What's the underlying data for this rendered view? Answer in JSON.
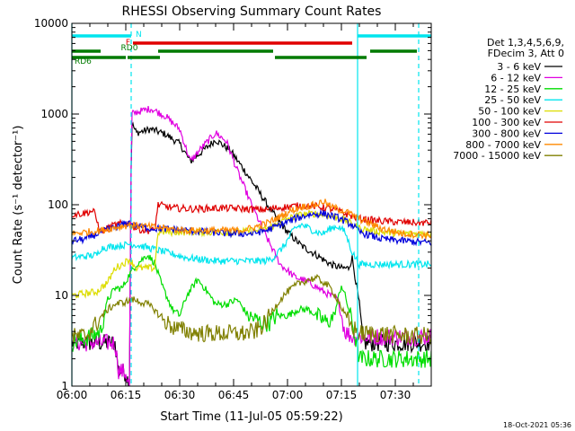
{
  "chart_data": {
    "type": "line",
    "title": "RHESSI Observing Summary Count Rates",
    "xlabel": "Start Time (11-Jul-05 05:59:22)",
    "ylabel": "Count Rate (s⁻¹ detector⁻¹)",
    "y_scale": "log",
    "ylim": [
      1,
      10000
    ],
    "xlim_minutes": [
      0,
      100
    ],
    "x_ticks": [
      {
        "t": 0,
        "label": "06:00"
      },
      {
        "t": 15,
        "label": "06:15"
      },
      {
        "t": 30,
        "label": "06:30"
      },
      {
        "t": 45,
        "label": "06:45"
      },
      {
        "t": 60,
        "label": "07:00"
      },
      {
        "t": 75,
        "label": "07:15"
      },
      {
        "t": 90,
        "label": "07:30"
      }
    ],
    "y_ticks": [
      {
        "v": 1,
        "label": "1"
      },
      {
        "v": 10,
        "label": "10"
      },
      {
        "v": 100,
        "label": "100"
      },
      {
        "v": 1000,
        "label": "1000"
      },
      {
        "v": 10000,
        "label": "10000"
      }
    ],
    "legend_header": [
      "Det 1,3,4,5,6,9,",
      "FDecim 3, Att 0"
    ],
    "legend_position": "right",
    "footer_date": "18-Oct-2021 05:36",
    "night_bars": [
      {
        "label": "N",
        "color": "#00e5ee",
        "segments": [
          [
            0,
            16.5
          ],
          [
            79.5,
            100
          ]
        ]
      }
    ],
    "flags": [
      {
        "label": "F",
        "color": "#e00000",
        "segments": [
          [
            17,
            78
          ]
        ]
      },
      {
        "label": "RD0",
        "color": "#007a00",
        "segments": [
          [
            0,
            8
          ],
          [
            24,
            56
          ],
          [
            83,
            96
          ]
        ]
      },
      {
        "label": "RD6",
        "color": "#007a00",
        "segments": [
          [
            0,
            15
          ],
          [
            15.5,
            24.5
          ],
          [
            56.5,
            82
          ]
        ]
      }
    ],
    "vlines": [
      {
        "t": 0,
        "style": "solid",
        "color": "#00e5ee"
      },
      {
        "t": 16.5,
        "style": "dashed",
        "color": "#00e5ee"
      },
      {
        "t": 79.5,
        "style": "solid",
        "color": "#00e5ee"
      },
      {
        "t": 96.5,
        "style": "dashed",
        "color": "#00e5ee"
      }
    ],
    "series": [
      {
        "name": "3 - 6 keV",
        "color": "#000000",
        "points": [
          [
            0,
            3
          ],
          [
            12,
            3
          ],
          [
            13,
            1.5
          ],
          [
            15,
            1.4
          ],
          [
            16,
            1
          ],
          [
            16.6,
            800
          ],
          [
            18,
            620
          ],
          [
            22,
            680
          ],
          [
            26,
            600
          ],
          [
            30,
            470
          ],
          [
            33,
            300
          ],
          [
            36,
            380
          ],
          [
            40,
            520
          ],
          [
            44,
            400
          ],
          [
            48,
            240
          ],
          [
            52,
            140
          ],
          [
            56,
            80
          ],
          [
            60,
            50
          ],
          [
            64,
            35
          ],
          [
            68,
            28
          ],
          [
            72,
            22
          ],
          [
            75,
            20
          ],
          [
            77,
            20
          ],
          [
            78,
            26
          ],
          [
            80,
            8
          ],
          [
            81,
            3
          ],
          [
            100,
            3
          ]
        ]
      },
      {
        "name": "6 - 12 keV",
        "color": "#e000e0",
        "points": [
          [
            0,
            3
          ],
          [
            12,
            3
          ],
          [
            13,
            1.5
          ],
          [
            15,
            1.4
          ],
          [
            16,
            1
          ],
          [
            16.6,
            1000
          ],
          [
            18,
            1050
          ],
          [
            22,
            1150
          ],
          [
            26,
            950
          ],
          [
            30,
            680
          ],
          [
            33,
            300
          ],
          [
            36,
            420
          ],
          [
            40,
            620
          ],
          [
            43,
            500
          ],
          [
            46,
            240
          ],
          [
            50,
            100
          ],
          [
            54,
            45
          ],
          [
            58,
            22
          ],
          [
            62,
            16
          ],
          [
            66,
            14
          ],
          [
            70,
            11
          ],
          [
            74,
            9
          ],
          [
            76,
            4
          ],
          [
            78,
            3.5
          ],
          [
            100,
            3.5
          ]
        ]
      },
      {
        "name": "12 - 25 keV",
        "color": "#00dd00",
        "points": [
          [
            0,
            3
          ],
          [
            5,
            3.5
          ],
          [
            8,
            4
          ],
          [
            10,
            9
          ],
          [
            12,
            12
          ],
          [
            14,
            12
          ],
          [
            16,
            17
          ],
          [
            18,
            22
          ],
          [
            21,
            28
          ],
          [
            23,
            23
          ],
          [
            25,
            13
          ],
          [
            28,
            7
          ],
          [
            30,
            6
          ],
          [
            32,
            10
          ],
          [
            35,
            15
          ],
          [
            37,
            12
          ],
          [
            40,
            8
          ],
          [
            43,
            8
          ],
          [
            46,
            9
          ],
          [
            49,
            6
          ],
          [
            53,
            5
          ],
          [
            55,
            5
          ],
          [
            57,
            6
          ],
          [
            60,
            6
          ],
          [
            63,
            7
          ],
          [
            66,
            7
          ],
          [
            68,
            6
          ],
          [
            71,
            5
          ],
          [
            73,
            6
          ],
          [
            75,
            13
          ],
          [
            76,
            10
          ],
          [
            78,
            5
          ],
          [
            80,
            2
          ],
          [
            100,
            2
          ]
        ]
      },
      {
        "name": "25 - 50 keV",
        "color": "#00e5ee",
        "points": [
          [
            0,
            26
          ],
          [
            7,
            28
          ],
          [
            8,
            33
          ],
          [
            12,
            35
          ],
          [
            15,
            36
          ],
          [
            16,
            37
          ],
          [
            18,
            36
          ],
          [
            22,
            33
          ],
          [
            26,
            30
          ],
          [
            32,
            26
          ],
          [
            40,
            24
          ],
          [
            48,
            24
          ],
          [
            54,
            24
          ],
          [
            56,
            26
          ],
          [
            59,
            35
          ],
          [
            62,
            55
          ],
          [
            64,
            60
          ],
          [
            66,
            55
          ],
          [
            68,
            50
          ],
          [
            70,
            48
          ],
          [
            72,
            55
          ],
          [
            74,
            58
          ],
          [
            76,
            50
          ],
          [
            78,
            30
          ],
          [
            80,
            22
          ],
          [
            100,
            22
          ]
        ]
      },
      {
        "name": "50 - 100 keV",
        "color": "#dddd00",
        "points": [
          [
            0,
            10
          ],
          [
            7,
            11
          ],
          [
            8,
            12
          ],
          [
            10,
            14
          ],
          [
            12,
            20
          ],
          [
            14,
            22
          ],
          [
            16,
            25
          ],
          [
            18,
            20
          ],
          [
            20,
            20
          ],
          [
            23,
            20
          ],
          [
            24,
            50
          ],
          [
            30,
            50
          ],
          [
            38,
            50
          ],
          [
            46,
            50
          ],
          [
            52,
            52
          ],
          [
            56,
            58
          ],
          [
            60,
            70
          ],
          [
            64,
            78
          ],
          [
            68,
            80
          ],
          [
            72,
            75
          ],
          [
            76,
            68
          ],
          [
            80,
            55
          ],
          [
            86,
            50
          ],
          [
            92,
            48
          ],
          [
            100,
            48
          ]
        ]
      },
      {
        "name": "100 - 300 keV",
        "color": "#e00000",
        "points": [
          [
            0,
            78
          ],
          [
            3,
            80
          ],
          [
            6,
            86
          ],
          [
            8,
            50
          ],
          [
            10,
            55
          ],
          [
            12,
            60
          ],
          [
            15,
            63
          ],
          [
            16,
            60
          ],
          [
            18,
            55
          ],
          [
            20,
            52
          ],
          [
            23,
            52
          ],
          [
            24,
            100
          ],
          [
            28,
            92
          ],
          [
            34,
            90
          ],
          [
            42,
            92
          ],
          [
            48,
            90
          ],
          [
            54,
            88
          ],
          [
            57,
            92
          ],
          [
            60,
            95
          ],
          [
            64,
            98
          ],
          [
            68,
            96
          ],
          [
            72,
            90
          ],
          [
            76,
            80
          ],
          [
            80,
            70
          ],
          [
            86,
            66
          ],
          [
            92,
            64
          ],
          [
            100,
            63
          ]
        ]
      },
      {
        "name": "300 - 800 keV",
        "color": "#0000dd",
        "points": [
          [
            0,
            40
          ],
          [
            4,
            42
          ],
          [
            8,
            50
          ],
          [
            12,
            56
          ],
          [
            15,
            62
          ],
          [
            16,
            63
          ],
          [
            18,
            58
          ],
          [
            22,
            55
          ],
          [
            26,
            54
          ],
          [
            32,
            52
          ],
          [
            38,
            50
          ],
          [
            44,
            48
          ],
          [
            50,
            48
          ],
          [
            54,
            52
          ],
          [
            58,
            60
          ],
          [
            62,
            70
          ],
          [
            66,
            78
          ],
          [
            70,
            80
          ],
          [
            74,
            72
          ],
          [
            78,
            60
          ],
          [
            80,
            50
          ],
          [
            86,
            42
          ],
          [
            92,
            40
          ],
          [
            100,
            38
          ]
        ]
      },
      {
        "name": "800 - 7000 keV",
        "color": "#ff8800",
        "points": [
          [
            0,
            48
          ],
          [
            4,
            50
          ],
          [
            8,
            52
          ],
          [
            12,
            56
          ],
          [
            16,
            60
          ],
          [
            20,
            58
          ],
          [
            26,
            55
          ],
          [
            32,
            52
          ],
          [
            40,
            52
          ],
          [
            46,
            52
          ],
          [
            50,
            55
          ],
          [
            54,
            62
          ],
          [
            58,
            74
          ],
          [
            61,
            86
          ],
          [
            64,
            95
          ],
          [
            68,
            100
          ],
          [
            70,
            110
          ],
          [
            72,
            95
          ],
          [
            76,
            85
          ],
          [
            80,
            70
          ],
          [
            86,
            55
          ],
          [
            92,
            48
          ],
          [
            100,
            46
          ]
        ]
      },
      {
        "name": "7000 - 15000 keV",
        "color": "#808000",
        "points": [
          [
            0,
            3.5
          ],
          [
            4,
            3.6
          ],
          [
            7,
            5
          ],
          [
            10,
            7
          ],
          [
            12,
            8
          ],
          [
            15,
            8.5
          ],
          [
            17,
            9
          ],
          [
            19,
            8.5
          ],
          [
            21,
            8
          ],
          [
            23,
            7
          ],
          [
            25,
            5.5
          ],
          [
            28,
            4.5
          ],
          [
            32,
            4
          ],
          [
            36,
            3.8
          ],
          [
            40,
            3.8
          ],
          [
            44,
            3.8
          ],
          [
            48,
            3.8
          ],
          [
            51,
            4
          ],
          [
            54,
            5
          ],
          [
            56,
            7
          ],
          [
            58,
            9
          ],
          [
            60,
            11
          ],
          [
            63,
            13.5
          ],
          [
            66,
            15
          ],
          [
            68,
            15.5
          ],
          [
            70,
            14
          ],
          [
            72,
            12
          ],
          [
            74,
            9
          ],
          [
            76,
            6
          ],
          [
            78,
            4.5
          ],
          [
            80,
            3.8
          ],
          [
            86,
            3.8
          ],
          [
            92,
            3.6
          ],
          [
            100,
            3.6
          ]
        ]
      }
    ]
  }
}
